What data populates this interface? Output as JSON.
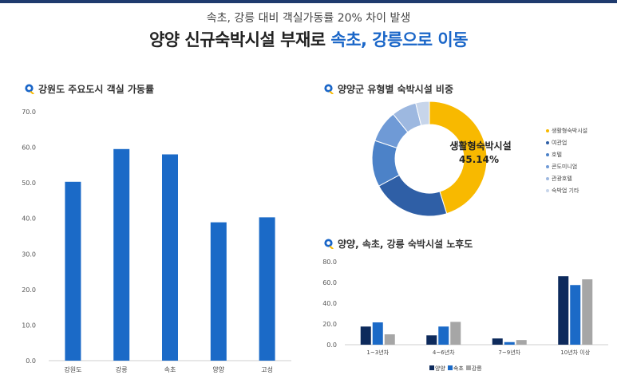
{
  "header": {
    "subtitle": "속초, 강릉 대비 객실가동률 20% 차이 발생",
    "headline_main": "양양 신규숙박시설 부재로 ",
    "headline_accent": "속초, 강릉으로 이동"
  },
  "colors": {
    "accent": "#1a66c8",
    "topbar": "#1f3b6e",
    "bar_blue": "#1b6ac7",
    "yangyang": "#0d2a5c",
    "sokcho": "#1b6ac7",
    "gangneung": "#a6a6a6",
    "donut": [
      "#f8b900",
      "#2f5fa6",
      "#4c82c8",
      "#6f9ad6",
      "#9db8e0",
      "#c7d5ea"
    ]
  },
  "icons": {
    "section_marker": "location-pin-icon"
  },
  "chart_data": [
    {
      "type": "bar",
      "title": "강원도 주요도시 객실 가동률",
      "categories": [
        "강원도",
        "강릉",
        "속초",
        "양양",
        "고성"
      ],
      "values": [
        50.3,
        59.5,
        58.0,
        38.9,
        40.3
      ],
      "ylim": [
        0,
        70
      ],
      "yticks": [
        "0.0",
        "10.0",
        "20.0",
        "30.0",
        "40.0",
        "50.0",
        "60.0",
        "70.0"
      ],
      "grid": false
    },
    {
      "type": "pie",
      "title": "양양군 유형별 숙박시설 비중",
      "labels": [
        "생활형숙박시설",
        "여관업",
        "호텔",
        "콘도미니엄",
        "관광호텔",
        "숙박업 기타"
      ],
      "values": [
        45.14,
        22.0,
        13.0,
        9.0,
        7.0,
        3.86
      ],
      "center_label": "생활형숙박시설",
      "center_value": "45.14%",
      "legend": "right"
    },
    {
      "type": "bar",
      "title": "양양, 속초, 강릉 숙박시설 노후도",
      "categories": [
        "1~3년차",
        "4~6년차",
        "7~9년차",
        "10년차 이상"
      ],
      "series": [
        {
          "name": "양양",
          "values": [
            17.5,
            9.0,
            6.0,
            66.0
          ]
        },
        {
          "name": "속초",
          "values": [
            21.5,
            17.5,
            2.5,
            57.5
          ]
        },
        {
          "name": "강릉",
          "values": [
            10.0,
            22.0,
            4.5,
            63.0
          ]
        }
      ],
      "ylim": [
        0,
        80
      ],
      "yticks": [
        "0.0",
        "20.0",
        "40.0",
        "60.0",
        "80.0"
      ],
      "legend": "bottom"
    }
  ]
}
